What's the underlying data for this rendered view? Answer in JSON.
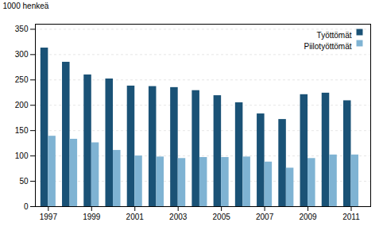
{
  "chart_data": {
    "type": "bar",
    "ylabel": "1000 henkeä",
    "x": [
      1997,
      1998,
      1999,
      2000,
      2001,
      2002,
      2003,
      2004,
      2005,
      2006,
      2007,
      2008,
      2009,
      2010,
      2011
    ],
    "series": [
      {
        "name": "Työttömät",
        "color": "#1a5276",
        "values": [
          313,
          285,
          260,
          252,
          238,
          237,
          235,
          229,
          219,
          205,
          183,
          172,
          221,
          224,
          209
        ]
      },
      {
        "name": "Piilotyöttömät",
        "color": "#7fb3d3",
        "values": [
          139,
          133,
          126,
          111,
          100,
          98,
          95,
          97,
          97,
          98,
          88,
          76,
          95,
          102,
          102
        ]
      }
    ],
    "xlim": [
      1996.4,
      2011.9
    ],
    "xticks": [
      1997,
      1999,
      2001,
      2003,
      2005,
      2007,
      2009,
      2011
    ],
    "ylim": [
      0,
      360
    ],
    "yticks": [
      0,
      50,
      100,
      150,
      200,
      250,
      300,
      350
    ],
    "grid": true,
    "legend": "upper right"
  }
}
